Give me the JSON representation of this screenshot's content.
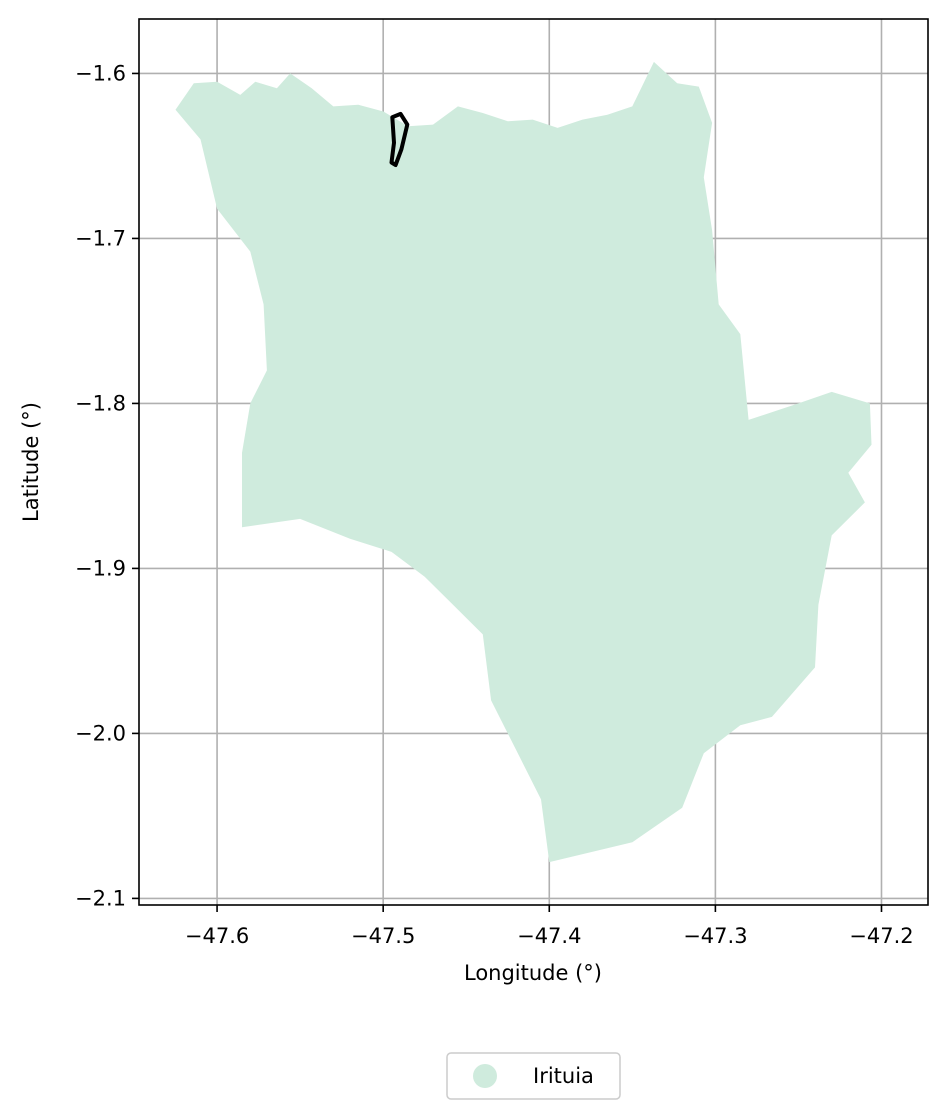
{
  "chart_data": {
    "type": "map",
    "xlabel": "Longitude (°)",
    "ylabel": "Latitude (°)",
    "xlim": [
      -47.647,
      -47.172
    ],
    "ylim": [
      -2.104,
      -1.567
    ],
    "grid": true,
    "x_ticks": [
      -47.6,
      -47.5,
      -47.4,
      -47.3,
      -47.2
    ],
    "x_tick_labels": [
      "−47.6",
      "−47.5",
      "−47.4",
      "−47.3",
      "−47.2"
    ],
    "y_ticks": [
      -1.6,
      -1.7,
      -1.8,
      -1.9,
      -2.0,
      -2.1
    ],
    "y_tick_labels": [
      "−1.6",
      "−1.7",
      "−1.8",
      "−1.9",
      "−2.0",
      "−2.1"
    ],
    "legend": {
      "placement": "bottom-center",
      "entries": [
        {
          "label": "Irituia",
          "color": "#cfebdd"
        }
      ]
    },
    "regions": [
      {
        "name": "Irituia",
        "color": "#cfebdd",
        "boundary": [
          [
            -47.625,
            -1.622
          ],
          [
            -47.614,
            -1.606
          ],
          [
            -47.6,
            -1.605
          ],
          [
            -47.586,
            -1.613
          ],
          [
            -47.577,
            -1.605
          ],
          [
            -47.564,
            -1.609
          ],
          [
            -47.556,
            -1.6
          ],
          [
            -47.543,
            -1.609
          ],
          [
            -47.53,
            -1.62
          ],
          [
            -47.515,
            -1.619
          ],
          [
            -47.5,
            -1.623
          ],
          [
            -47.485,
            -1.632
          ],
          [
            -47.47,
            -1.631
          ],
          [
            -47.455,
            -1.62
          ],
          [
            -47.44,
            -1.624
          ],
          [
            -47.425,
            -1.629
          ],
          [
            -47.41,
            -1.628
          ],
          [
            -47.395,
            -1.633
          ],
          [
            -47.38,
            -1.628
          ],
          [
            -47.365,
            -1.625
          ],
          [
            -47.35,
            -1.62
          ],
          [
            -47.337,
            -1.593
          ],
          [
            -47.323,
            -1.606
          ],
          [
            -47.31,
            -1.608
          ],
          [
            -47.302,
            -1.63
          ],
          [
            -47.307,
            -1.663
          ],
          [
            -47.302,
            -1.695
          ],
          [
            -47.298,
            -1.74
          ],
          [
            -47.285,
            -1.758
          ],
          [
            -47.28,
            -1.81
          ],
          [
            -47.25,
            -1.8
          ],
          [
            -47.23,
            -1.793
          ],
          [
            -47.207,
            -1.8
          ],
          [
            -47.206,
            -1.825
          ],
          [
            -47.22,
            -1.842
          ],
          [
            -47.21,
            -1.86
          ],
          [
            -47.23,
            -1.88
          ],
          [
            -47.238,
            -1.922
          ],
          [
            -47.24,
            -1.96
          ],
          [
            -47.266,
            -1.99
          ],
          [
            -47.285,
            -1.995
          ],
          [
            -47.307,
            -2.012
          ],
          [
            -47.32,
            -2.045
          ],
          [
            -47.35,
            -2.066
          ],
          [
            -47.4,
            -2.078
          ],
          [
            -47.405,
            -2.04
          ],
          [
            -47.42,
            -2.01
          ],
          [
            -47.435,
            -1.98
          ],
          [
            -47.44,
            -1.94
          ],
          [
            -47.46,
            -1.92
          ],
          [
            -47.475,
            -1.905
          ],
          [
            -47.495,
            -1.89
          ],
          [
            -47.52,
            -1.882
          ],
          [
            -47.55,
            -1.87
          ],
          [
            -47.585,
            -1.875
          ],
          [
            -47.585,
            -1.83
          ],
          [
            -47.58,
            -1.8
          ],
          [
            -47.57,
            -1.78
          ],
          [
            -47.572,
            -1.74
          ],
          [
            -47.58,
            -1.708
          ],
          [
            -47.6,
            -1.682
          ],
          [
            -47.61,
            -1.64
          ]
        ]
      }
    ],
    "outlines": [
      {
        "color": "#000000",
        "boundary": [
          [
            -47.4945,
            -1.6265
          ],
          [
            -47.4895,
            -1.6245
          ],
          [
            -47.4855,
            -1.631
          ],
          [
            -47.489,
            -1.646
          ],
          [
            -47.4925,
            -1.6555
          ],
          [
            -47.495,
            -1.654
          ],
          [
            -47.4935,
            -1.642
          ]
        ]
      }
    ]
  }
}
